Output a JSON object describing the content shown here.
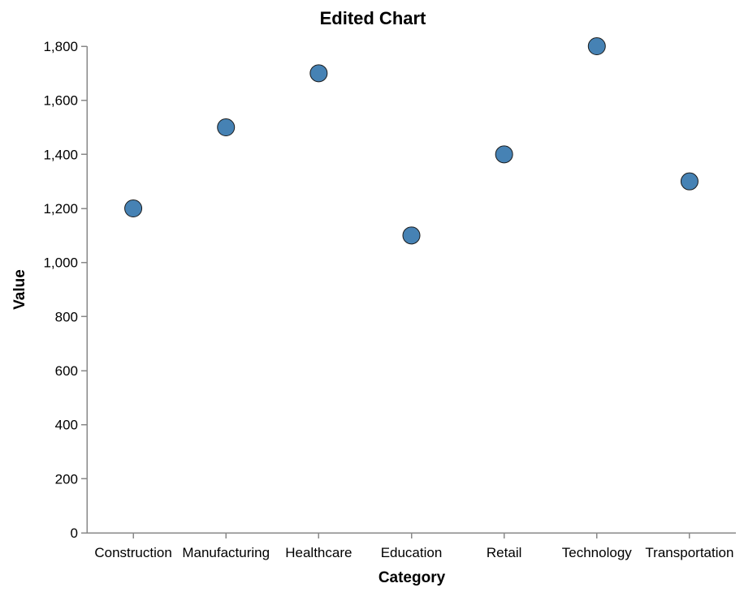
{
  "chart_data": {
    "type": "scatter",
    "title": "Edited Chart",
    "xlabel": "Category",
    "ylabel": "Value",
    "categories": [
      "Construction",
      "Manufacturing",
      "Healthcare",
      "Education",
      "Retail",
      "Technology",
      "Transportation"
    ],
    "points": [
      {
        "x": 0.5,
        "y": 1200
      },
      {
        "x": 1.5,
        "y": 1500
      },
      {
        "x": 2.5,
        "y": 1700
      },
      {
        "x": 3.5,
        "y": 1100
      },
      {
        "x": 4.5,
        "y": 1400
      },
      {
        "x": 5.5,
        "y": 1800
      },
      {
        "x": 6.5,
        "y": 1300
      }
    ],
    "y_ticks": [
      "0",
      "200",
      "400",
      "600",
      "800",
      "1,000",
      "1,200",
      "1,400",
      "1,600",
      "1,800"
    ],
    "ylim": [
      0,
      1800
    ],
    "grid": false,
    "point_color": "#4682b4"
  }
}
